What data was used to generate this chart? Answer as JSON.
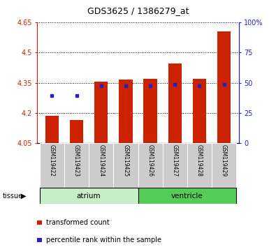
{
  "title": "GDS3625 / 1386279_at",
  "samples": [
    "GSM119422",
    "GSM119423",
    "GSM119424",
    "GSM119425",
    "GSM119426",
    "GSM119427",
    "GSM119428",
    "GSM119429"
  ],
  "red_bar_tops": [
    4.185,
    4.165,
    4.355,
    4.365,
    4.37,
    4.445,
    4.37,
    4.605
  ],
  "bar_base": 4.05,
  "blue_dot_values": [
    4.285,
    4.285,
    4.335,
    4.335,
    4.335,
    4.34,
    4.335,
    4.34
  ],
  "blue_dot_show": [
    true,
    true,
    true,
    true,
    true,
    true,
    true,
    true
  ],
  "ylim": [
    4.05,
    4.65
  ],
  "yticks_left": [
    4.05,
    4.2,
    4.35,
    4.5,
    4.65
  ],
  "yticks_right_vals": [
    0,
    25,
    50,
    75,
    100
  ],
  "yticks_right_labels": [
    "0",
    "25",
    "50",
    "75",
    "100%"
  ],
  "tissue_groups": [
    {
      "label": "atrium",
      "start": 0,
      "end": 3,
      "color": "#c8f0c8"
    },
    {
      "label": "ventricle",
      "start": 4,
      "end": 7,
      "color": "#55cc55"
    }
  ],
  "red_color": "#cc2200",
  "blue_color": "#2222cc",
  "bar_width": 0.55,
  "legend_items": [
    {
      "color": "#cc2200",
      "label": "transformed count"
    },
    {
      "color": "#2222cc",
      "label": "percentile rank within the sample"
    }
  ]
}
